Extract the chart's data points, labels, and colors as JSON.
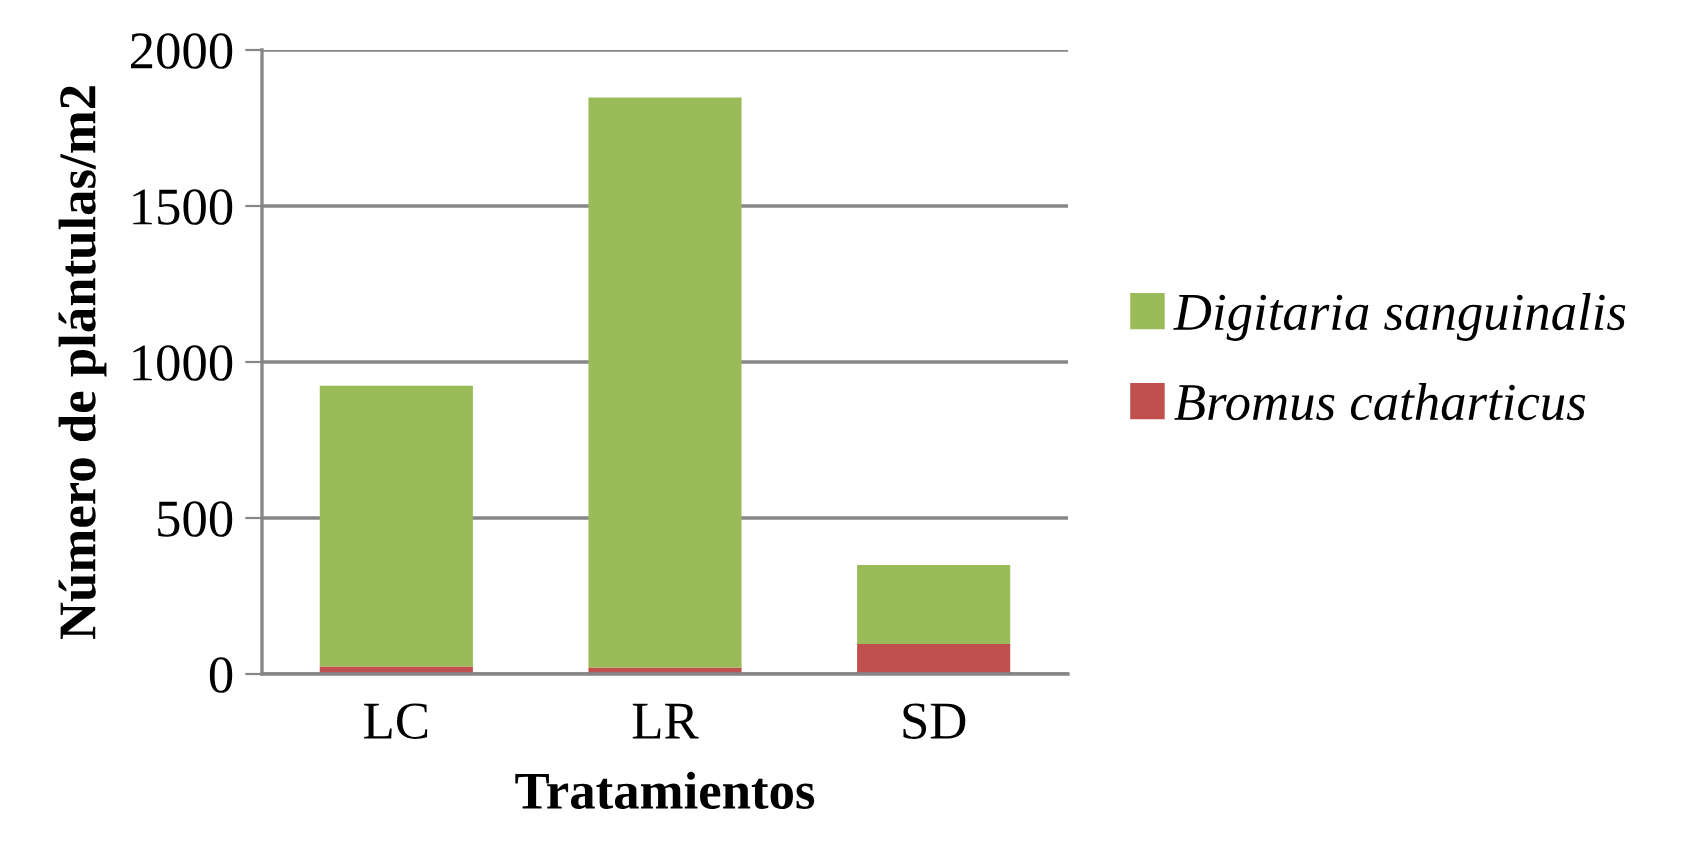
{
  "chart_data": {
    "type": "bar",
    "stacked": true,
    "xlabel": "Tratamientos",
    "ylabel": "Número de plántulas/m2",
    "categories": [
      "LC",
      "LR",
      "SD"
    ],
    "series": [
      {
        "name": "Bromus catharticus",
        "color": "#c0504d",
        "values": [
          24,
          21,
          96
        ]
      },
      {
        "name": "Digitaria sanguinalis",
        "color": "#9bbb59",
        "values": [
          900,
          1827,
          253
        ]
      }
    ],
    "ylim": [
      0,
      2000
    ],
    "yticks": [
      0,
      500,
      1000,
      1500,
      2000
    ],
    "grid": "y",
    "legend": "right"
  }
}
